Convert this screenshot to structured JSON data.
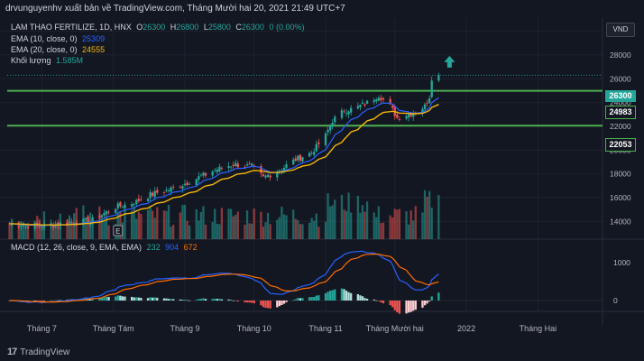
{
  "header": {
    "publish_text": "drvunguyenhv xuất bản về TradingView.com, Tháng Mười hai 20, 2021 21:49 UTC+7"
  },
  "footer": {
    "logo_text": "TradingView"
  },
  "currency_badge": "VND",
  "legend": {
    "symbol": "LAM THAO FERTILIZE, 1D, HNX",
    "ohlc": {
      "o_label": "O",
      "o": "26300",
      "h_label": "H",
      "h": "26800",
      "l_label": "L",
      "l": "25800",
      "c_label": "C",
      "c": "26300",
      "change": "0 (0.00%)"
    },
    "ema10": {
      "label": "EMA (10, close, 0)",
      "value": "25309"
    },
    "ema20": {
      "label": "EMA (20, close, 0)",
      "value": "24555"
    },
    "volume": {
      "label": "Khối lượng",
      "value": "1.585M"
    },
    "macd": {
      "label": "MACD (12, 26, close, 9, EMA, EMA)",
      "hist": "232",
      "macd": "904",
      "signal": "672"
    }
  },
  "colors": {
    "up": "#26a69a",
    "down": "#ef5350",
    "ema10": "#2962ff",
    "ema20": "#f5b50a",
    "level": "#4caf50",
    "macd": "#2962ff",
    "signal": "#ff6d00"
  },
  "price_tags": {
    "last": "26300",
    "level_upper": "24983",
    "level_lower": "22053"
  },
  "chart_data": [
    {
      "type": "candlestick",
      "title": "LAM THAO FERTILIZE, 1D, HNX",
      "x_tick_labels": [
        "Tháng 7",
        "Tháng Tám",
        "Tháng 9",
        "Tháng 10",
        "Tháng 11",
        "Tháng Mười hai",
        "2022",
        "Tháng Hai"
      ],
      "y_tick_labels": [
        14000,
        16000,
        18000,
        20000,
        22000,
        24000,
        26000,
        28000,
        30000
      ],
      "ylim": [
        12500,
        30500
      ],
      "x_range_days": [
        "2021-06-16",
        "2022-03-01"
      ],
      "horizontal_levels": [
        24983,
        22053
      ],
      "last_price": 26300,
      "ema10_last": 25309,
      "ema20_last": 24555,
      "volume_last": "1.585M",
      "close_anchors": [
        [
          "2021-06-17",
          13800
        ],
        [
          "2021-07-01",
          13600
        ],
        [
          "2021-07-12",
          13900
        ],
        [
          "2021-07-22",
          14000
        ],
        [
          "2021-08-02",
          15200
        ],
        [
          "2021-08-10",
          15600
        ],
        [
          "2021-08-18",
          16300
        ],
        [
          "2021-08-26",
          16700
        ],
        [
          "2021-09-06",
          17600
        ],
        [
          "2021-09-14",
          18300
        ],
        [
          "2021-09-22",
          18800
        ],
        [
          "2021-09-30",
          18600
        ],
        [
          "2021-10-05",
          17700
        ],
        [
          "2021-10-12",
          18300
        ],
        [
          "2021-10-19",
          19200
        ],
        [
          "2021-10-26",
          19800
        ],
        [
          "2021-11-01",
          21200
        ],
        [
          "2021-11-04",
          22500
        ],
        [
          "2021-11-09",
          23300
        ],
        [
          "2021-11-15",
          23600
        ],
        [
          "2021-11-19",
          24000
        ],
        [
          "2021-11-24",
          24600
        ],
        [
          "2021-11-29",
          23700
        ],
        [
          "2021-12-02",
          22700
        ],
        [
          "2021-12-07",
          23000
        ],
        [
          "2021-12-10",
          23200
        ],
        [
          "2021-12-14",
          23700
        ],
        [
          "2021-12-16",
          24500
        ],
        [
          "2021-12-17",
          26100
        ],
        [
          "2021-12-20",
          26300
        ]
      ]
    },
    {
      "type": "line",
      "title": "MACD (12, 26, close, 9, EMA, EMA)",
      "y_tick_labels": [
        0,
        1000
      ],
      "last_values": {
        "histogram": 232,
        "macd": 904,
        "signal": 672
      }
    }
  ]
}
